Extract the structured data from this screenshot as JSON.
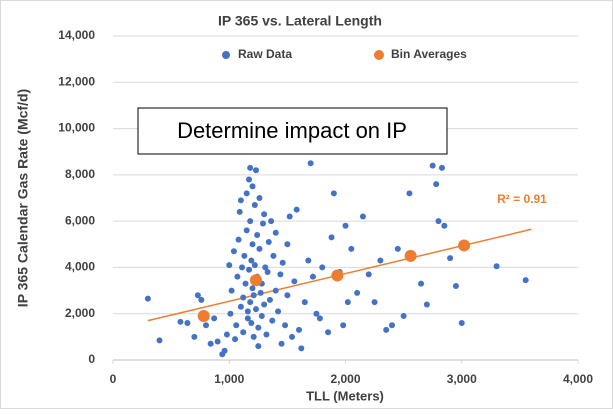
{
  "chart_data": {
    "type": "scatter",
    "title": "IP 365 vs. Lateral Length",
    "x_label": "TLL (Meters)",
    "y_label": "IP 365 Calendar Gas Rate (Mcf/d)",
    "annotation": "Determine impact on IP",
    "trendline": {
      "label": "R² = 0.91",
      "color": "#ed7d31",
      "x": [
        300,
        3600
      ],
      "y": [
        1700,
        5650
      ]
    },
    "xlim": [
      0,
      4000
    ],
    "xticks": [
      0,
      {
        "value": 1000,
        "label": "1,000"
      },
      {
        "value": 2000,
        "label": "2,000"
      },
      {
        "value": 3000,
        "label": "3,000"
      },
      {
        "value": 4000,
        "label": "4,000"
      }
    ],
    "ylim": [
      0,
      14000
    ],
    "yticks": [
      0,
      {
        "value": 2000,
        "label": "2,000"
      },
      {
        "value": 4000,
        "label": "4,000"
      },
      {
        "value": 6000,
        "label": "6,000"
      },
      {
        "value": 8000,
        "label": "8,000"
      },
      {
        "value": 10000,
        "label": "10,000"
      },
      {
        "value": 12000,
        "label": "12,000"
      },
      {
        "value": 14000,
        "label": "14,000"
      }
    ],
    "grid": true,
    "legend": "top",
    "series": [
      {
        "name": "Raw Data",
        "color": "#4472c4",
        "size": 3,
        "x": [
          300,
          400,
          580,
          640,
          700,
          730,
          760,
          800,
          840,
          870,
          900,
          940,
          960,
          980,
          1000,
          1010,
          1020,
          1040,
          1050,
          1060,
          1070,
          1080,
          1090,
          1100,
          1100,
          1110,
          1120,
          1120,
          1130,
          1140,
          1150,
          1150,
          1160,
          1160,
          1170,
          1170,
          1180,
          1180,
          1180,
          1190,
          1190,
          1200,
          1200,
          1200,
          1210,
          1210,
          1220,
          1220,
          1230,
          1230,
          1240,
          1240,
          1250,
          1250,
          1260,
          1260,
          1270,
          1280,
          1280,
          1290,
          1300,
          1300,
          1310,
          1320,
          1330,
          1340,
          1350,
          1360,
          1370,
          1380,
          1400,
          1400,
          1420,
          1440,
          1450,
          1460,
          1480,
          1500,
          1500,
          1520,
          1540,
          1560,
          1580,
          1600,
          1620,
          1650,
          1680,
          1700,
          1720,
          1750,
          1780,
          1800,
          1850,
          1880,
          1900,
          1950,
          1980,
          2000,
          2020,
          2050,
          2100,
          2150,
          2200,
          2250,
          2300,
          2350,
          2400,
          2450,
          2500,
          2550,
          2650,
          2700,
          2750,
          2780,
          2800,
          2830,
          2850,
          2900,
          2950,
          3000,
          3300,
          3550
        ],
        "values": [
          2650,
          850,
          1650,
          1600,
          1000,
          2800,
          2600,
          1500,
          700,
          1800,
          800,
          250,
          400,
          1100,
          4100,
          2000,
          3000,
          4700,
          900,
          1500,
          3600,
          5200,
          6400,
          2300,
          6900,
          4000,
          2700,
          1200,
          4500,
          3300,
          5600,
          7200,
          2100,
          1800,
          7800,
          3900,
          8300,
          6000,
          2500,
          4300,
          1600,
          5000,
          3100,
          7500,
          2800,
          1000,
          6700,
          4100,
          8200,
          2200,
          5400,
          3600,
          600,
          1400,
          7000,
          4800,
          2900,
          3300,
          1900,
          5900,
          2400,
          6300,
          4000,
          1100,
          3800,
          5100,
          2600,
          6000,
          1700,
          4500,
          3000,
          5500,
          2100,
          3700,
          700,
          4200,
          1500,
          5000,
          2800,
          6200,
          1000,
          3400,
          6500,
          1300,
          500,
          2500,
          4300,
          8500,
          3600,
          2000,
          1800,
          4000,
          1200,
          5300,
          7200,
          3800,
          1500,
          5800,
          2500,
          4800,
          2900,
          6200,
          3700,
          2500,
          4300,
          1300,
          1500,
          4800,
          1900,
          7200,
          3300,
          2400,
          8400,
          7600,
          6000,
          8300,
          5800,
          4400,
          3200,
          1600,
          4050,
          3450
        ]
      },
      {
        "name": "Bin Averages",
        "color": "#ed7d31",
        "size": 6,
        "x": [
          780,
          1230,
          1930,
          2560,
          3020
        ],
        "values": [
          1900,
          3450,
          3650,
          4500,
          4950
        ]
      }
    ]
  }
}
